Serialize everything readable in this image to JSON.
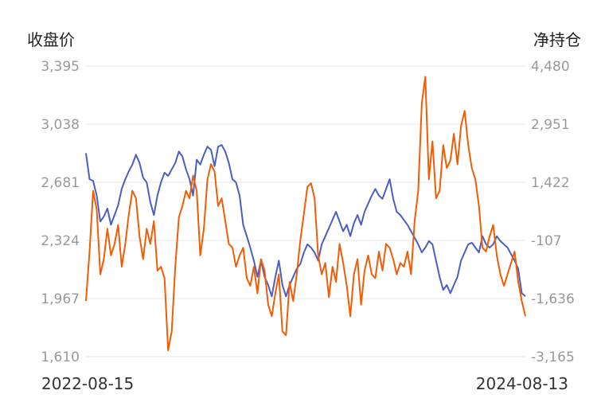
{
  "chart_data": {
    "type": "line",
    "ylabel_left": "收盘价",
    "ylabel_right": "净持仓",
    "x_start": "2022-08-15",
    "x_end": "2024-08-13",
    "left_axis": {
      "ticks": [
        "3,395",
        "3,038",
        "2,681",
        "2,324",
        "1,967",
        "1,610"
      ],
      "ylim": [
        1610,
        3395
      ]
    },
    "right_axis": {
      "ticks": [
        "4,480",
        "2,951",
        "1,422",
        "-107",
        "-1,636",
        "-3,165"
      ],
      "ylim": [
        -3165,
        4480
      ]
    },
    "grid": true,
    "series": [
      {
        "axis": "left",
        "color": "#4a5fc1",
        "values": [
          2860,
          2700,
          2690,
          2600,
          2440,
          2470,
          2520,
          2420,
          2480,
          2540,
          2640,
          2700,
          2750,
          2790,
          2850,
          2800,
          2710,
          2680,
          2560,
          2480,
          2600,
          2680,
          2740,
          2720,
          2760,
          2800,
          2870,
          2840,
          2760,
          2700,
          2600,
          2820,
          2790,
          2850,
          2900,
          2880,
          2780,
          2900,
          2910,
          2870,
          2800,
          2700,
          2680,
          2600,
          2420,
          2350,
          2280,
          2200,
          2100,
          2200,
          2100,
          2050,
          1980,
          2100,
          2200,
          2050,
          1980,
          2050,
          2100,
          2150,
          2180,
          2250,
          2300,
          2280,
          2250,
          2200,
          2300,
          2350,
          2400,
          2450,
          2500,
          2440,
          2380,
          2420,
          2350,
          2430,
          2480,
          2420,
          2500,
          2550,
          2600,
          2640,
          2600,
          2580,
          2640,
          2700,
          2580,
          2500,
          2480,
          2450,
          2420,
          2380,
          2340,
          2300,
          2250,
          2280,
          2320,
          2300,
          2200,
          2100,
          2020,
          2050,
          2000,
          2050,
          2100,
          2200,
          2250,
          2300,
          2310,
          2280,
          2250,
          2350,
          2300,
          2280,
          2300,
          2350,
          2320,
          2300,
          2280,
          2240,
          2200,
          2150,
          2000,
          1980
        ]
      },
      {
        "axis": "right",
        "color": "#f25c05",
        "values": [
          -1700,
          -400,
          1200,
          700,
          -1000,
          -600,
          200,
          -500,
          -200,
          300,
          -800,
          -200,
          600,
          1200,
          1000,
          0,
          -600,
          200,
          -200,
          400,
          -900,
          -800,
          -1100,
          -3000,
          -2500,
          -800,
          500,
          800,
          1200,
          1000,
          1600,
          1200,
          -500,
          200,
          1500,
          1900,
          1700,
          800,
          1000,
          400,
          -200,
          -300,
          -800,
          -500,
          -300,
          -1100,
          -1300,
          -800,
          -1500,
          -600,
          -900,
          -1800,
          -2100,
          -1500,
          -1000,
          -2500,
          -2600,
          -1200,
          -1700,
          -1000,
          -100,
          600,
          1300,
          1400,
          1000,
          -500,
          -1000,
          -700,
          -1600,
          -800,
          -1200,
          -200,
          -700,
          -1300,
          -2100,
          -1000,
          -600,
          -1800,
          -900,
          -500,
          -1000,
          -1100,
          -400,
          -900,
          -200,
          -300,
          -600,
          -1000,
          -700,
          -800,
          -400,
          -1000,
          400,
          1200,
          3500,
          4200,
          1500,
          2500,
          1000,
          1200,
          2400,
          1800,
          2000,
          2700,
          1900,
          2900,
          3300,
          2400,
          1800,
          1500,
          800,
          -300,
          -400,
          0,
          300,
          -500,
          -1000,
          -1300,
          -1000,
          -700,
          -400,
          -1200,
          -1700,
          -2100
        ]
      }
    ]
  }
}
